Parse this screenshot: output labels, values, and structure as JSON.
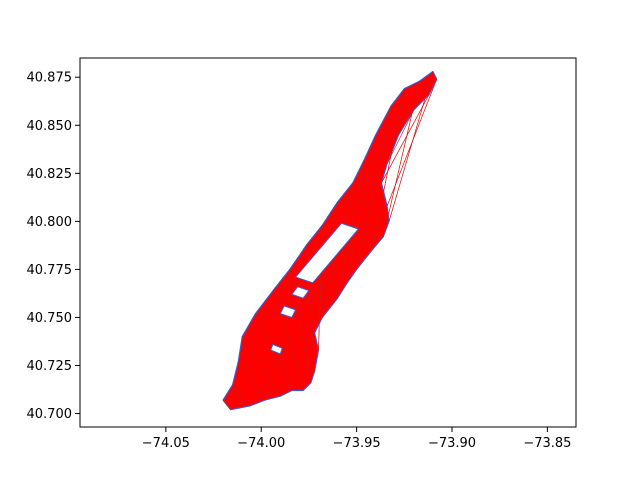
{
  "chart_data": {
    "type": "map",
    "title": "",
    "xlabel": "",
    "ylabel": "",
    "xlim": [
      -74.095,
      -73.835
    ],
    "ylim": [
      40.693,
      40.885
    ],
    "x_ticks": [
      -74.05,
      -74.0,
      -73.95,
      -73.9,
      -73.85
    ],
    "y_ticks": [
      40.7,
      40.725,
      40.75,
      40.775,
      40.8,
      40.825,
      40.85,
      40.875
    ],
    "x_tick_labels": [
      "−74.05",
      "−74.00",
      "−73.95",
      "−73.90",
      "−73.85"
    ],
    "y_tick_labels": [
      "40.700",
      "40.725",
      "40.750",
      "40.775",
      "40.800",
      "40.825",
      "40.850",
      "40.875"
    ],
    "fill_color": "#ff0000",
    "edge_color": "#3b5bcc",
    "grid": false,
    "region_outline": [
      [
        -74.016,
        40.702
      ],
      [
        -74.006,
        40.704
      ],
      [
        -73.998,
        40.707
      ],
      [
        -73.99,
        40.709
      ],
      [
        -73.984,
        40.712
      ],
      [
        -73.978,
        40.712
      ],
      [
        -73.974,
        40.716
      ],
      [
        -73.972,
        40.722
      ],
      [
        -73.97,
        40.733
      ],
      [
        -73.972,
        40.742
      ],
      [
        -73.968,
        40.75
      ],
      [
        -73.96,
        40.76
      ],
      [
        -73.955,
        40.768
      ],
      [
        -73.95,
        40.775
      ],
      [
        -73.942,
        40.785
      ],
      [
        -73.936,
        40.792
      ],
      [
        -73.933,
        40.8
      ],
      [
        -73.934,
        40.808
      ],
      [
        -73.937,
        40.82
      ],
      [
        -73.934,
        40.83
      ],
      [
        -73.928,
        40.845
      ],
      [
        -73.92,
        40.858
      ],
      [
        -73.912,
        40.866
      ],
      [
        -73.908,
        40.874
      ],
      [
        -73.91,
        40.878
      ],
      [
        -73.917,
        40.873
      ],
      [
        -73.925,
        40.869
      ],
      [
        -73.932,
        40.86
      ],
      [
        -73.94,
        40.845
      ],
      [
        -73.946,
        40.832
      ],
      [
        -73.952,
        40.82
      ],
      [
        -73.96,
        40.81
      ],
      [
        -73.968,
        40.798
      ],
      [
        -73.976,
        40.788
      ],
      [
        -73.985,
        40.775
      ],
      [
        -73.993,
        40.765
      ],
      [
        -74.003,
        40.752
      ],
      [
        -74.01,
        40.74
      ],
      [
        -74.012,
        40.727
      ],
      [
        -74.015,
        40.715
      ],
      [
        -74.02,
        40.707
      ]
    ],
    "parks": [
      [
        [
          -73.958,
          40.799
        ],
        [
          -73.949,
          40.796
        ],
        [
          -73.973,
          40.768
        ],
        [
          -73.982,
          40.771
        ]
      ],
      [
        [
          -73.984,
          40.762
        ],
        [
          -73.978,
          40.76
        ],
        [
          -73.975,
          40.764
        ],
        [
          -73.981,
          40.766
        ]
      ],
      [
        [
          -73.99,
          40.752
        ],
        [
          -73.984,
          40.75
        ],
        [
          -73.982,
          40.754
        ],
        [
          -73.988,
          40.756
        ]
      ],
      [
        [
          -73.995,
          40.733
        ],
        [
          -73.99,
          40.731
        ],
        [
          -73.989,
          40.734
        ],
        [
          -73.994,
          40.736
        ]
      ]
    ]
  }
}
